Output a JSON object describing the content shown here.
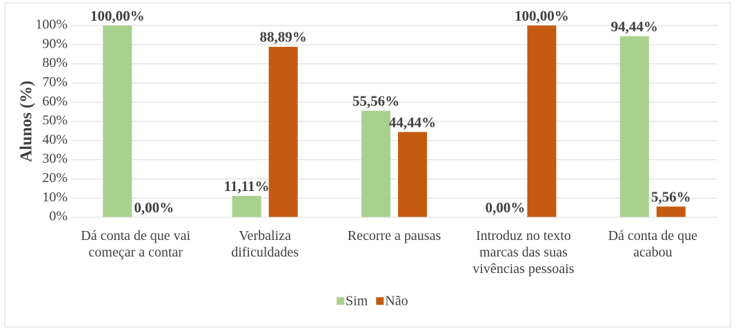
{
  "chart_data": {
    "type": "bar",
    "y_label": "Alunos (%)",
    "categories": [
      "Dá conta de que vai começar a contar",
      "Verbaliza dificuldades",
      "Recorre a pausas",
      "Introduz no texto marcas das suas vivências pessoais",
      "Dá conta de que acabou"
    ],
    "series": [
      {
        "name": "Sim",
        "color": "#a9d18e",
        "values": [
          100,
          11.11,
          55.56,
          0,
          94.44
        ],
        "value_labels": [
          "100,00%",
          "11,11%",
          "55,56%",
          "0,00%",
          "94,44%"
        ]
      },
      {
        "name": "Não",
        "color": "#c55a11",
        "values": [
          0,
          88.89,
          44.44,
          100,
          5.56
        ],
        "value_labels": [
          "0,00%",
          "88,89%",
          "44,44%",
          "100,00%",
          "5,56%"
        ]
      }
    ],
    "ylim": [
      0,
      100
    ],
    "yticks": [
      {
        "value": 0,
        "label": "0%"
      },
      {
        "value": 10,
        "label": "10%"
      },
      {
        "value": 20,
        "label": "20%"
      },
      {
        "value": 30,
        "label": "30%"
      },
      {
        "value": 40,
        "label": "40%"
      },
      {
        "value": 50,
        "label": "50%"
      },
      {
        "value": 60,
        "label": "60%"
      },
      {
        "value": 70,
        "label": "70%"
      },
      {
        "value": 80,
        "label": "80%"
      },
      {
        "value": 90,
        "label": "90%"
      },
      {
        "value": 100,
        "label": "100%"
      }
    ],
    "grid": true,
    "legend": "bottom"
  }
}
